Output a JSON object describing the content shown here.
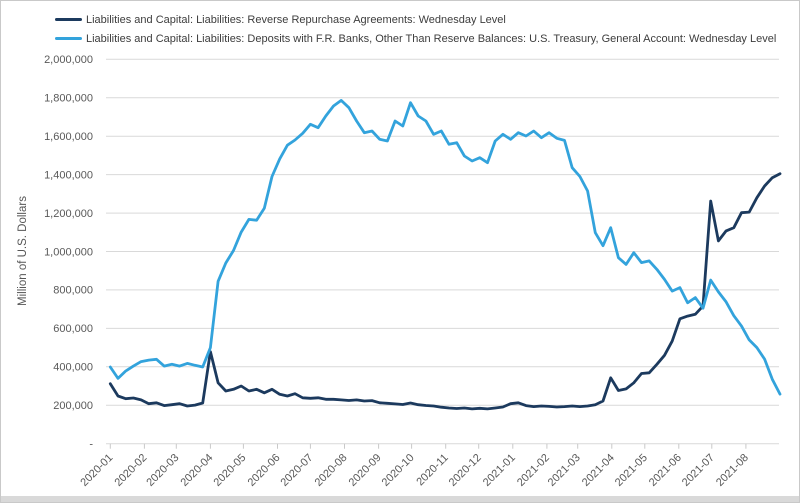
{
  "chart_data": {
    "type": "line",
    "title": "",
    "xlabel": "",
    "ylabel": "Million of U.S. Dollars",
    "ylim": [
      0,
      2000000
    ],
    "ytick_step": 200000,
    "ytick_labels": [
      "-",
      "200,000",
      "400,000",
      "600,000",
      "800,000",
      "1,000,000",
      "1,200,000",
      "1,400,000",
      "1,600,000",
      "1,800,000",
      "2,000,000"
    ],
    "xtick_labels": [
      "2020-01",
      "2020-02",
      "2020-03",
      "2020-04",
      "2020-05",
      "2020-06",
      "2020-07",
      "2020-08",
      "2020-09",
      "2020-10",
      "2020-11",
      "2020-12",
      "2021-01",
      "2021-02",
      "2021-03",
      "2021-04",
      "2021-05",
      "2021-06",
      "2021-07",
      "2021-08"
    ],
    "grid": true,
    "legend_position": "top-left",
    "colors": {
      "grid": "#d9d9d9",
      "axis_text": "#595959",
      "legend_text": "#3d3d3d"
    },
    "x_dates": [
      "2020-01-01",
      "2020-01-08",
      "2020-01-15",
      "2020-01-22",
      "2020-01-29",
      "2020-02-05",
      "2020-02-12",
      "2020-02-19",
      "2020-02-26",
      "2020-03-04",
      "2020-03-11",
      "2020-03-18",
      "2020-03-25",
      "2020-04-01",
      "2020-04-08",
      "2020-04-15",
      "2020-04-22",
      "2020-04-29",
      "2020-05-06",
      "2020-05-13",
      "2020-05-20",
      "2020-05-27",
      "2020-06-03",
      "2020-06-10",
      "2020-06-17",
      "2020-06-24",
      "2020-07-01",
      "2020-07-08",
      "2020-07-15",
      "2020-07-22",
      "2020-07-29",
      "2020-08-05",
      "2020-08-12",
      "2020-08-19",
      "2020-08-26",
      "2020-09-02",
      "2020-09-09",
      "2020-09-16",
      "2020-09-23",
      "2020-09-30",
      "2020-10-07",
      "2020-10-14",
      "2020-10-21",
      "2020-10-28",
      "2020-11-04",
      "2020-11-11",
      "2020-11-18",
      "2020-11-25",
      "2020-12-02",
      "2020-12-09",
      "2020-12-16",
      "2020-12-23",
      "2020-12-30",
      "2021-01-06",
      "2021-01-13",
      "2021-01-20",
      "2021-01-27",
      "2021-02-03",
      "2021-02-10",
      "2021-02-17",
      "2021-02-24",
      "2021-03-03",
      "2021-03-10",
      "2021-03-17",
      "2021-03-24",
      "2021-03-31",
      "2021-04-07",
      "2021-04-14",
      "2021-04-21",
      "2021-04-28",
      "2021-05-05",
      "2021-05-12",
      "2021-05-19",
      "2021-05-26",
      "2021-06-02",
      "2021-06-09",
      "2021-06-16",
      "2021-06-23",
      "2021-06-30",
      "2021-07-07",
      "2021-07-14",
      "2021-07-21",
      "2021-07-28",
      "2021-08-04",
      "2021-08-11",
      "2021-08-18",
      "2021-08-25",
      "2021-09-01"
    ],
    "series": [
      {
        "name": "Liabilities and Capital: Liabilities: Reverse Repurchase Agreements: Wednesday Level",
        "color": "#1c3a5e",
        "values": [
          312000,
          248000,
          234000,
          238000,
          228000,
          208000,
          213000,
          198000,
          203000,
          208000,
          196000,
          201000,
          212000,
          479000,
          317000,
          274000,
          283000,
          300000,
          274000,
          283000,
          265000,
          283000,
          257000,
          248000,
          260000,
          239000,
          236000,
          239000,
          231000,
          231000,
          228000,
          225000,
          228000,
          222000,
          224000,
          213000,
          210000,
          207000,
          204000,
          212000,
          203000,
          199000,
          196000,
          190000,
          186000,
          183000,
          186000,
          181000,
          184000,
          181000,
          186000,
          191000,
          208000,
          213000,
          198000,
          193000,
          196000,
          194000,
          191000,
          193000,
          196000,
          193000,
          196000,
          203000,
          222000,
          343000,
          277000,
          285000,
          317000,
          365000,
          369000,
          413000,
          460000,
          534000,
          650000,
          664000,
          673000,
          716000,
          1263000,
          1055000,
          1107000,
          1124000,
          1202000,
          1205000,
          1280000,
          1341000,
          1384000,
          1405000
        ]
      },
      {
        "name": "Liabilities and Capital: Liabilities: Deposits with F.R. Banks, Other Than Reserve Balances: U.S. Treasury, General Account: Wednesday Level",
        "color": "#33a3dc",
        "values": [
          399000,
          340000,
          378000,
          404000,
          427000,
          435000,
          439000,
          404000,
          413000,
          404000,
          418000,
          408000,
          399000,
          500000,
          845000,
          940000,
          1005000,
          1101000,
          1167000,
          1163000,
          1225000,
          1390000,
          1482000,
          1553000,
          1580000,
          1615000,
          1662000,
          1644000,
          1705000,
          1757000,
          1786000,
          1748000,
          1679000,
          1618000,
          1627000,
          1584000,
          1575000,
          1679000,
          1653000,
          1774000,
          1705000,
          1679000,
          1610000,
          1627000,
          1558000,
          1566000,
          1497000,
          1471000,
          1488000,
          1462000,
          1575000,
          1610000,
          1584000,
          1618000,
          1601000,
          1627000,
          1592000,
          1618000,
          1589000,
          1578000,
          1436000,
          1390000,
          1315000,
          1098000,
          1030000,
          1124000,
          968000,
          933000,
          994000,
          942000,
          951000,
          907000,
          855000,
          794000,
          812000,
          733000,
          760000,
          705000,
          851000,
          790000,
          738000,
          666000,
          612000,
          540000,
          500000,
          440000,
          335000,
          258000
        ]
      }
    ]
  }
}
